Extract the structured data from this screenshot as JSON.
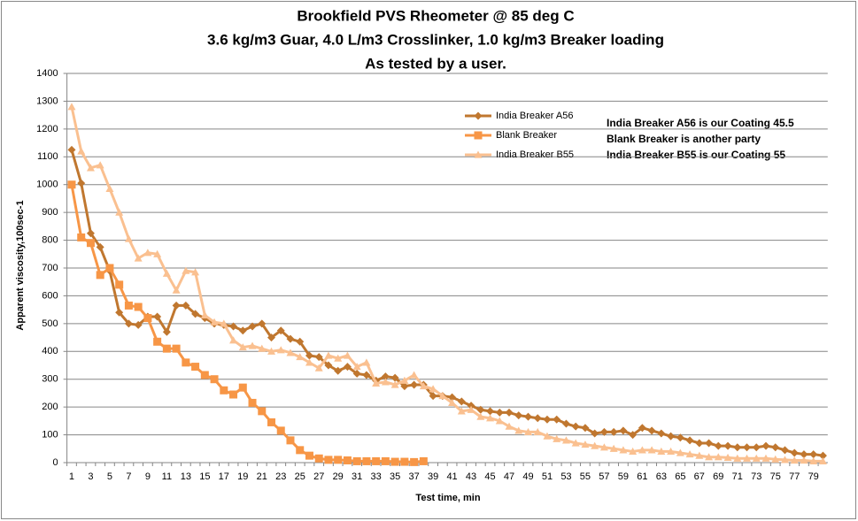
{
  "chart_data": {
    "type": "line",
    "title": [
      "Brookfield PVS Rheometer @ 85 deg C",
      "3.6 kg/m3 Guar, 4.0 L/m3 Crosslinker, 1.0 kg/m3 Breaker loading",
      "As tested by a user."
    ],
    "x_label": "Test time, min",
    "y_label": "Apparent viscosity,100sec-1",
    "annotations": [
      "India Breaker A56 is our Coating 45.5",
      "Blank Breaker is another party",
      "India Breaker B55 is our Coating  55"
    ],
    "categories": [
      1,
      null,
      3,
      null,
      5,
      null,
      7,
      null,
      9,
      null,
      11,
      null,
      13,
      null,
      15,
      null,
      17,
      null,
      19,
      null,
      21,
      null,
      23,
      null,
      25,
      null,
      27,
      null,
      29,
      null,
      31,
      null,
      33,
      null,
      35,
      null,
      37,
      null,
      39,
      null,
      41,
      null,
      43,
      null,
      45,
      null,
      47,
      null,
      49,
      null,
      51,
      null,
      53,
      null,
      55,
      null,
      57,
      null,
      59,
      null,
      61,
      null,
      63,
      null,
      65,
      null,
      67,
      null,
      69,
      null,
      71,
      null,
      73,
      null,
      75,
      null,
      77,
      null,
      79,
      null
    ],
    "series": [
      {
        "name": "India Breaker A56",
        "color": "#c0772f",
        "marker": "diamond",
        "values": [
          1125,
          1005,
          825,
          775,
          690,
          540,
          500,
          495,
          525,
          525,
          470,
          565,
          565,
          535,
          520,
          500,
          495,
          490,
          475,
          490,
          500,
          450,
          475,
          445,
          435,
          385,
          380,
          350,
          330,
          345,
          320,
          315,
          295,
          310,
          305,
          275,
          280,
          280,
          240,
          240,
          235,
          220,
          205,
          190,
          185,
          180,
          180,
          170,
          165,
          160,
          155,
          155,
          140,
          130,
          125,
          105,
          110,
          110,
          115,
          100,
          125,
          115,
          105,
          95,
          90,
          80,
          70,
          70,
          60,
          60,
          55,
          55,
          55,
          60,
          55,
          45,
          35,
          30,
          30,
          25
        ]
      },
      {
        "name": "Blank Breaker",
        "color": "#f79646",
        "marker": "square",
        "values": [
          1000,
          810,
          790,
          675,
          700,
          640,
          565,
          560,
          520,
          435,
          410,
          410,
          360,
          345,
          315,
          300,
          260,
          245,
          270,
          215,
          185,
          145,
          115,
          80,
          45,
          25,
          15,
          10,
          10,
          8,
          5,
          5,
          5,
          5,
          3,
          3,
          2,
          5,
          null,
          null,
          null,
          null,
          null,
          null,
          null,
          null,
          null,
          null,
          null,
          null,
          null,
          null,
          null,
          null,
          null,
          null,
          null,
          null,
          null,
          null,
          null,
          null,
          null,
          null,
          null,
          null,
          null,
          null,
          null,
          null,
          null,
          null,
          null,
          null,
          null,
          null,
          null,
          null,
          null,
          null
        ]
      },
      {
        "name": "India Breaker B55",
        "color": "#fac090",
        "marker": "triangle",
        "values": [
          1280,
          1120,
          1060,
          1070,
          985,
          900,
          805,
          735,
          755,
          750,
          680,
          620,
          690,
          685,
          530,
          505,
          500,
          440,
          415,
          420,
          410,
          400,
          405,
          395,
          380,
          360,
          340,
          385,
          375,
          385,
          345,
          360,
          285,
          290,
          280,
          295,
          315,
          275,
          265,
          240,
          215,
          185,
          190,
          165,
          160,
          150,
          130,
          115,
          110,
          110,
          95,
          85,
          80,
          70,
          65,
          60,
          55,
          50,
          45,
          40,
          45,
          45,
          40,
          40,
          35,
          30,
          25,
          20,
          20,
          18,
          15,
          15,
          15,
          15,
          12,
          10,
          8,
          8,
          5,
          5
        ]
      }
    ],
    "ylim": [
      0,
      1400
    ],
    "yticks": [
      0,
      100,
      200,
      300,
      400,
      500,
      600,
      700,
      800,
      900,
      1000,
      1100,
      1200,
      1300,
      1400
    ],
    "grid": true
  }
}
